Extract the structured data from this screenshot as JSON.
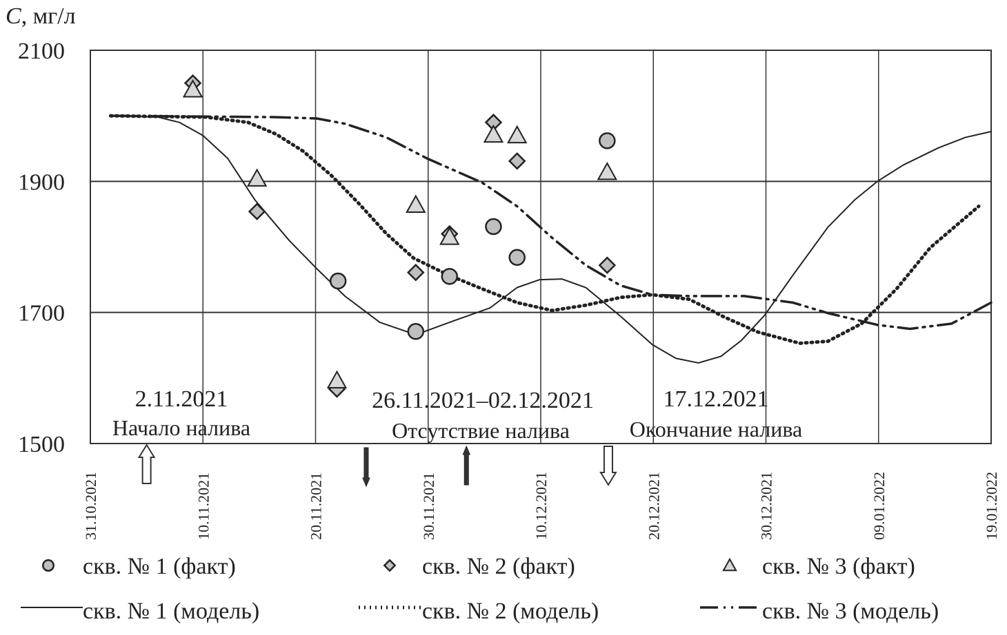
{
  "chart_data": {
    "type": "scatter",
    "ylabel_var": "C",
    "ylabel_unit": ", мг/л",
    "ylim": [
      1500,
      2100
    ],
    "yticks": [
      1500,
      1700,
      1900,
      2100
    ],
    "x_unit": "days since 31.10.2021",
    "xlim": [
      0,
      80
    ],
    "xticks": [
      {
        "day": 0,
        "label": "31.10.2021"
      },
      {
        "day": 10,
        "label": "10.11.2021"
      },
      {
        "day": 20,
        "label": "20.11.2021"
      },
      {
        "day": 30,
        "label": "30.11.2021"
      },
      {
        "day": 40,
        "label": "10.12.2021"
      },
      {
        "day": 50,
        "label": "20.12.2021"
      },
      {
        "day": 60,
        "label": "30.12.2021"
      },
      {
        "day": 70,
        "label": "09.01.2022"
      },
      {
        "day": 80,
        "label": "19.01.2022"
      }
    ],
    "grid": true,
    "series": [
      {
        "name": "скв. № 1 (факт)",
        "kind": "marker",
        "marker": "circle",
        "x": [
          22.0,
          28.9,
          31.9,
          35.8,
          37.9,
          45.9
        ],
        "y": [
          1748,
          1671,
          1755,
          1831,
          1784,
          1962
        ]
      },
      {
        "name": "скв. № 2 (факт)",
        "kind": "marker",
        "marker": "diamond",
        "x": [
          9.1,
          14.8,
          21.9,
          28.9,
          31.9,
          35.8,
          37.9,
          45.9
        ],
        "y": [
          2050,
          1854,
          1583,
          1761,
          1820,
          1990,
          1931,
          1772
        ]
      },
      {
        "name": "скв. № 3 (факт)",
        "kind": "marker",
        "marker": "triangle",
        "x": [
          9.1,
          14.8,
          21.9,
          28.9,
          31.9,
          35.8,
          37.9,
          45.9
        ],
        "y": [
          2040,
          1904,
          1596,
          1864,
          1815,
          1971,
          1970,
          1914
        ]
      },
      {
        "name": "скв. № 1 (модель)",
        "kind": "line",
        "style": "solid",
        "x": [
          1.8,
          6,
          7.9,
          10,
          12.2,
          14.6,
          17.7,
          20.1,
          22.6,
          25.7,
          28.9,
          32.4,
          35.5,
          37.9,
          39.9,
          41.9,
          44,
          47.1,
          49.9,
          52,
          54,
          56,
          57.8,
          59.9,
          62.4,
          65.5,
          67.9,
          69.9,
          72.2,
          75.3,
          77.7,
          80
        ],
        "y": [
          2000,
          1998,
          1990,
          1970,
          1935,
          1872,
          1809,
          1767,
          1725,
          1685,
          1666,
          1688,
          1707,
          1738,
          1750,
          1751,
          1738,
          1694,
          1651,
          1630,
          1623,
          1633,
          1657,
          1696,
          1757,
          1830,
          1872,
          1900,
          1925,
          1951,
          1967,
          1976
        ]
      },
      {
        "name": "скв. № 2 (модель)",
        "kind": "line",
        "style": "dotted",
        "x": [
          1.8,
          10.3,
          14,
          16.5,
          18.9,
          21.4,
          23.8,
          26.3,
          28.7,
          31.8,
          34.8,
          37.9,
          41,
          44,
          47.1,
          49.9,
          53.2,
          56.3,
          59.3,
          63,
          65.5,
          68.5,
          71.6,
          74.6,
          78.9
        ],
        "y": [
          2000,
          1998,
          1990,
          1972,
          1946,
          1909,
          1867,
          1820,
          1783,
          1757,
          1736,
          1715,
          1703,
          1711,
          1723,
          1727,
          1720,
          1693,
          1670,
          1653,
          1656,
          1683,
          1736,
          1799,
          1862
        ]
      },
      {
        "name": "скв. № 3 (модель)",
        "kind": "line",
        "style": "dashdot",
        "x": [
          1.8,
          16.5,
          20.1,
          22.6,
          26.3,
          29.9,
          34.8,
          37.9,
          41,
          44,
          47.1,
          49.9,
          53.2,
          58.1,
          62.4,
          65.5,
          69.9,
          72.8,
          76.5,
          80
        ],
        "y": [
          2000,
          1998,
          1996,
          1988,
          1967,
          1935,
          1898,
          1862,
          1814,
          1772,
          1741,
          1727,
          1725,
          1725,
          1715,
          1699,
          1681,
          1675,
          1683,
          1715
        ]
      }
    ],
    "annotations": [
      {
        "date": "2.11.2021",
        "text": "Начало налива"
      },
      {
        "date": "26.11.2021–02.12.2021",
        "text": "Отсутствие налива"
      },
      {
        "date": "17.12.2021",
        "text": "Окончание налива"
      }
    ],
    "arrows": [
      {
        "day": 5,
        "direction": "up",
        "style": "hollow"
      },
      {
        "day": 24.5,
        "direction": "down",
        "style": "solid"
      },
      {
        "day": 33.4,
        "direction": "up",
        "style": "solid"
      },
      {
        "day": 46,
        "direction": "down",
        "style": "hollow"
      }
    ],
    "legend_position": "bottom"
  }
}
